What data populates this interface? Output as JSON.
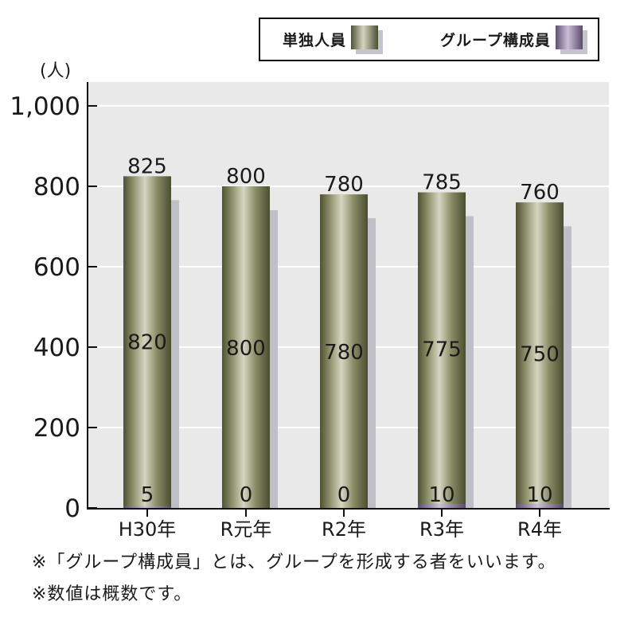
{
  "chart_data": {
    "type": "bar",
    "stacked": true,
    "unit_label": "(人)",
    "categories": [
      "H30年",
      "R元年",
      "R2年",
      "R3年",
      "R4年"
    ],
    "totals": [
      825,
      800,
      780,
      785,
      760
    ],
    "series": [
      {
        "name": "単独人員",
        "values": [
          820,
          800,
          780,
          775,
          750
        ],
        "color": "#6b6e48"
      },
      {
        "name": "グループ構成員",
        "values": [
          5,
          0,
          0,
          10,
          10
        ],
        "color": "#8d7aa0"
      }
    ],
    "ylim": [
      0,
      1000
    ],
    "yticks": [
      {
        "value": 0,
        "label": "0"
      },
      {
        "value": 200,
        "label": "200"
      },
      {
        "value": 400,
        "label": "400"
      },
      {
        "value": 600,
        "label": "600"
      },
      {
        "value": 800,
        "label": "800"
      },
      {
        "value": 1000,
        "label": "1,000"
      }
    ],
    "grid": true,
    "legend_position": "top-right"
  },
  "notes": [
    "※「グループ構成員」とは、グループを形成する者をいいます。",
    "※数値は概数です。"
  ]
}
